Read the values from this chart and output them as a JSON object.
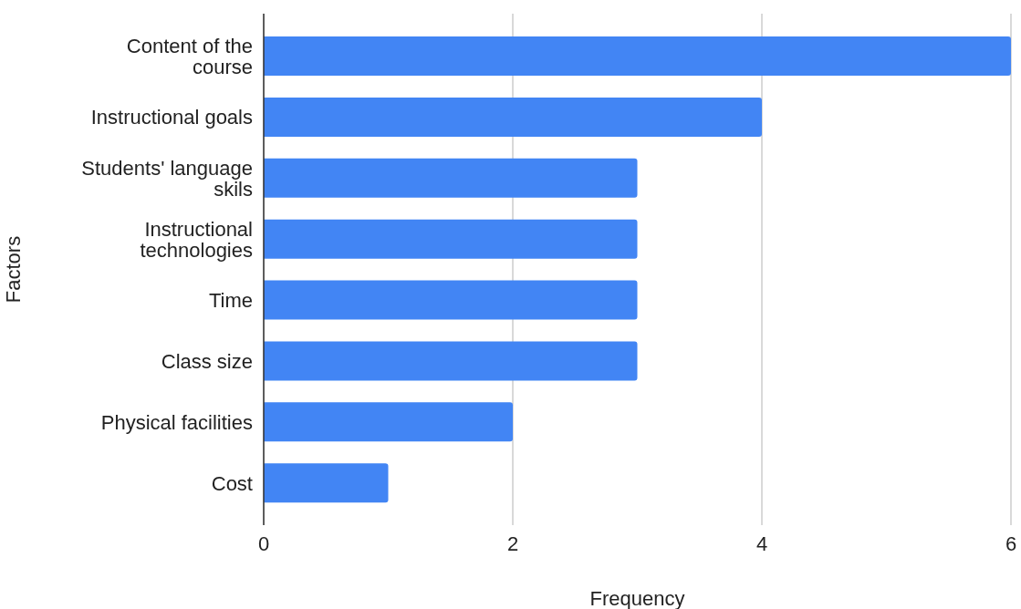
{
  "chart_data": {
    "type": "bar",
    "orientation": "horizontal",
    "xlabel": "Frequency",
    "ylabel": "Factors",
    "categories": [
      "Content of the course",
      "Instructional goals",
      "Students' language skils",
      "Instructional technologies",
      "Time",
      "Class size",
      "Physical facilities",
      "Cost"
    ],
    "values": [
      6,
      4,
      3,
      3,
      3,
      3,
      2,
      1
    ],
    "color": "#4285f4",
    "xlim": [
      0,
      6
    ],
    "xticks": [
      0,
      2,
      4,
      6
    ],
    "grid": "x"
  }
}
